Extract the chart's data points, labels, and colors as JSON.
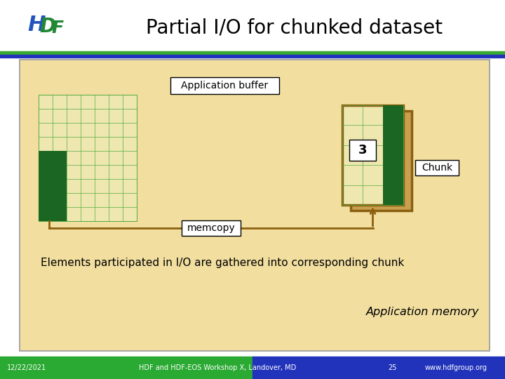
{
  "title": "Partial I/O for chunked dataset",
  "title_fontsize": 20,
  "bg_color": "#ffffff",
  "slide_bg": "#f2dfa0",
  "header_bar_green": "#3aaa33",
  "header_bar_blue": "#2233bb",
  "footer_left_color": "#2aaa33",
  "footer_right_color": "#2233bb",
  "footer_text": [
    "12/22/2021",
    "HDF and HDF-EOS Workshop X, Landover, MD",
    "25",
    "www.hdfgroup.org"
  ],
  "app_buffer_label": "Application buffer",
  "memcopy_label": "memcopy",
  "chunk_label": "Chunk",
  "chunk_number": "3",
  "body_text": "Elements participated in I/O are gathered into corresponding chunk",
  "app_memory_text": "Application memory",
  "grid_color": "#55aa44",
  "green_fill": "#1a6622",
  "buf_grid_bg": "#eee8b0",
  "brown_border": "#8B6010",
  "arrow_color": "#8B6010",
  "chunk_back_color": "#c8a050"
}
